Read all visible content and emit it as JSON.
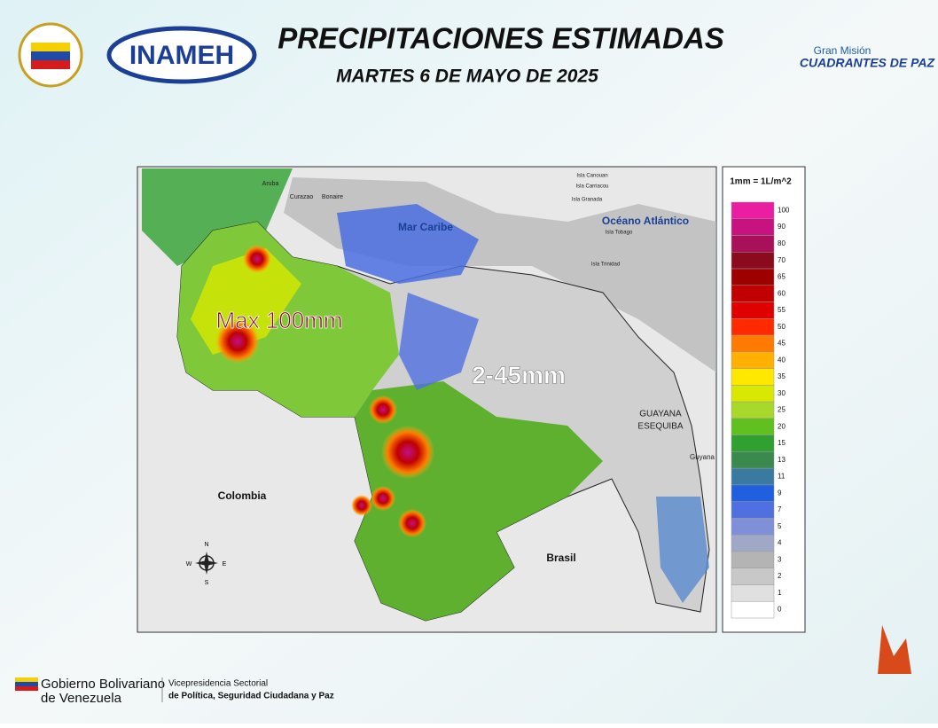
{
  "header": {
    "title": "PRECIPITACIONES ESTIMADAS",
    "date": "MARTES 6 DE MAYO  DE 2025",
    "agency": "INAMEH",
    "mission_top": "Gran Misión",
    "mission_name": "CUADRANTES DE PAZ"
  },
  "map": {
    "labels": {
      "sea": "Mar Caribe",
      "ocean": "Océano Atlántico",
      "colombia": "Colombia",
      "brasil": "Brasil",
      "guayana_1": "GUAYANA",
      "guayana_2": "ESEQUIBA",
      "guyana": "Guyana",
      "aruba": "Aruba",
      "curazao": "Curazao",
      "bonaire": "Bonaire",
      "canouan": "Isla Canouan",
      "carriacou": "Isla Carriacou",
      "granada": "Isla Granada",
      "tobago": "Isla Tobago",
      "trinidad": "Isla Trinidad"
    },
    "annotations": {
      "max": "Max 100mm",
      "range": "2-45mm"
    },
    "compass": {
      "n": "N",
      "s": "S",
      "e": "E",
      "w": "W"
    }
  },
  "legend": {
    "title": "1mm = 1L/m^2",
    "entries": [
      {
        "label": "100",
        "color": "#e91ea0"
      },
      {
        "label": "90",
        "color": "#c8127f"
      },
      {
        "label": "80",
        "color": "#a8115a"
      },
      {
        "label": "70",
        "color": "#8b0a1e"
      },
      {
        "label": "65",
        "color": "#9e0000"
      },
      {
        "label": "60",
        "color": "#c00000"
      },
      {
        "label": "55",
        "color": "#e00000"
      },
      {
        "label": "50",
        "color": "#ff2a00"
      },
      {
        "label": "45",
        "color": "#ff7a00"
      },
      {
        "label": "40",
        "color": "#ffb000"
      },
      {
        "label": "35",
        "color": "#ffe800"
      },
      {
        "label": "30",
        "color": "#d8e800"
      },
      {
        "label": "25",
        "color": "#a8d82a"
      },
      {
        "label": "20",
        "color": "#60c020"
      },
      {
        "label": "15",
        "color": "#30a030"
      },
      {
        "label": "13",
        "color": "#3a8a50"
      },
      {
        "label": "11",
        "color": "#3a7aa0"
      },
      {
        "label": "9",
        "color": "#2060e0"
      },
      {
        "label": "7",
        "color": "#5070e0"
      },
      {
        "label": "5",
        "color": "#8090d8"
      },
      {
        "label": "4",
        "color": "#a0a8c8"
      },
      {
        "label": "3",
        "color": "#b4b4b4"
      },
      {
        "label": "2",
        "color": "#c8c8c8"
      },
      {
        "label": "1",
        "color": "#e0e0e0"
      },
      {
        "label": "0",
        "color": "#ffffff"
      }
    ]
  },
  "footer": {
    "gov_1": "Gobierno Bolivariano",
    "gov_2": "de Venezuela",
    "vp_1": "Vicepresidencia Sectorial",
    "vp_2": "de Política, Seguridad Ciudadana y Paz"
  }
}
